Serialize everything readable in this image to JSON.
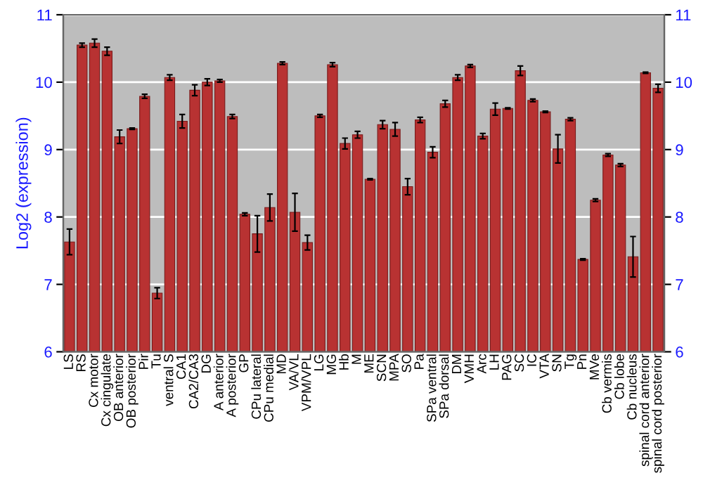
{
  "chart_data": {
    "type": "bar",
    "ylabel": "Log2 (expression)",
    "categories": [
      "LS",
      "RS",
      "Cx motor",
      "Cx cingulate",
      "OB anterior",
      "OB posterior",
      "Pir",
      "Tu",
      "ventral S",
      "CA1",
      "CA2/CA3",
      "DG",
      "A anterior",
      "A posterior",
      "GP",
      "CPu lateral",
      "CPu medial",
      "MD",
      "VA/VL",
      "VPM/VPL",
      "LG",
      "MG",
      "Hb",
      "M",
      "ME",
      "SCN",
      "MPA",
      "SO",
      "Pa",
      "SPa ventral",
      "SPa dorsal",
      "DM",
      "VMH",
      "Arc",
      "LH",
      "PAG",
      "SC",
      "IC",
      "VTA",
      "SN",
      "Tg",
      "Pn",
      "MVe",
      "Cb vermis",
      "Cb lobe",
      "Cb nucleus",
      "spinal cord anterior",
      "spinal cord posterior"
    ],
    "values": [
      7.63,
      10.55,
      10.58,
      10.46,
      9.19,
      9.31,
      9.79,
      6.87,
      10.07,
      9.42,
      9.88,
      10.0,
      10.02,
      9.49,
      8.04,
      7.75,
      8.14,
      10.28,
      8.07,
      7.62,
      9.5,
      10.26,
      9.09,
      9.22,
      8.56,
      9.37,
      9.3,
      8.45,
      9.44,
      8.96,
      9.68,
      10.07,
      10.24,
      9.2,
      9.6,
      9.61,
      10.17,
      9.73,
      9.56,
      9.01,
      9.45,
      7.37,
      8.25,
      8.92,
      8.77,
      7.41,
      10.14,
      9.91
    ],
    "errors": [
      0.19,
      0.03,
      0.06,
      0.06,
      0.1,
      0.01,
      0.03,
      0.08,
      0.04,
      0.1,
      0.08,
      0.05,
      0.02,
      0.03,
      0.02,
      0.27,
      0.2,
      0.02,
      0.28,
      0.11,
      0.02,
      0.03,
      0.08,
      0.05,
      0.01,
      0.06,
      0.1,
      0.12,
      0.04,
      0.08,
      0.05,
      0.04,
      0.02,
      0.04,
      0.09,
      0.01,
      0.07,
      0.02,
      0.01,
      0.21,
      0.02,
      0.01,
      0.02,
      0.02,
      0.02,
      0.3,
      0.01,
      0.06
    ],
    "color": "#b83232",
    "ylim": [
      6,
      11
    ],
    "yticks": [
      6,
      7,
      8,
      9,
      10,
      11
    ],
    "y2lim": [
      6,
      11
    ],
    "y2ticks": [
      6,
      7,
      8,
      9,
      10,
      11
    ],
    "grid": "y"
  }
}
